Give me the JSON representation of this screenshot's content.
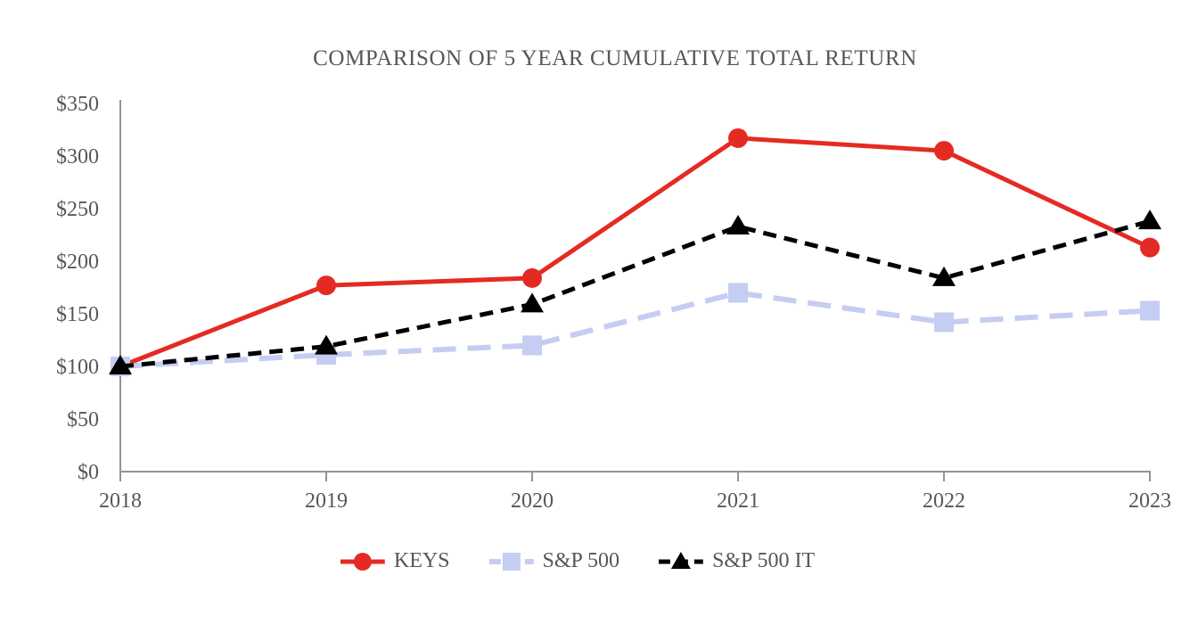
{
  "chart_data": {
    "type": "line",
    "title": "COMPARISON OF 5 YEAR CUMULATIVE TOTAL RETURN",
    "xlabel": "",
    "ylabel": "",
    "x_categories": [
      "2018",
      "2019",
      "2020",
      "2021",
      "2022",
      "2023"
    ],
    "series": [
      {
        "name": "KEYS",
        "color": "#e42b23",
        "marker": "circle",
        "line_style": "solid",
        "values": [
          100,
          177,
          184,
          317,
          305,
          213
        ]
      },
      {
        "name": "S&P 500",
        "color": "#c5cdf2",
        "marker": "square",
        "line_style": "long-dash",
        "values": [
          100,
          111,
          120,
          170,
          142,
          153
        ]
      },
      {
        "name": "S&P 500 IT",
        "color": "#000000",
        "marker": "triangle",
        "line_style": "dash",
        "values": [
          100,
          119,
          159,
          233,
          184,
          238
        ]
      }
    ],
    "ylim": [
      0,
      350
    ],
    "ytick_step": 50,
    "ytick_labels": [
      "$0",
      "$50",
      "$100",
      "$150",
      "$200",
      "$250",
      "$300",
      "$350"
    ],
    "grid": false,
    "legend_position": "bottom",
    "axis_color": "#949494",
    "text_color": "#575757",
    "background_color": "#ffffff"
  }
}
